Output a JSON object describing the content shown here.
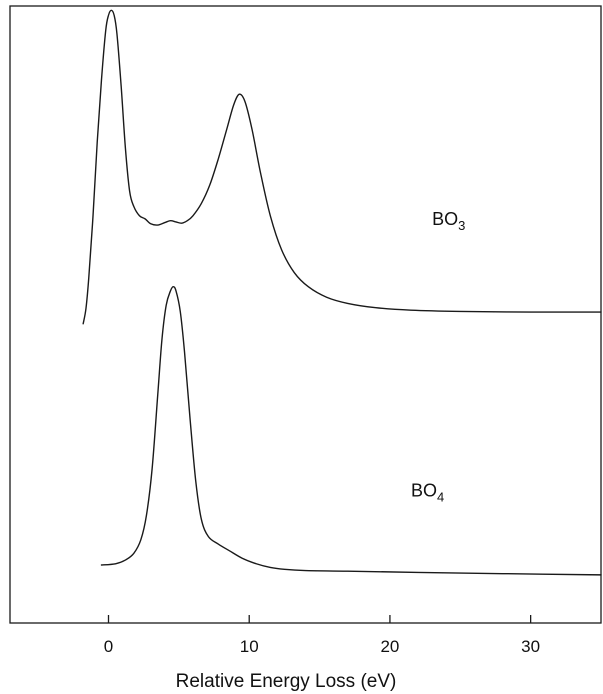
{
  "chart_data": {
    "type": "line",
    "xlabel": "Relative Energy Loss (eV)",
    "ylabel": "",
    "xlim": [
      -7,
      35
    ],
    "ylim": [
      0,
      1
    ],
    "xticks": [
      {
        "value": 0,
        "label": "0"
      },
      {
        "value": 10,
        "label": "10"
      },
      {
        "value": 20,
        "label": "20"
      },
      {
        "value": 30,
        "label": "30"
      }
    ],
    "grid": false,
    "legend": "none",
    "series": [
      {
        "label_main": "BO",
        "label_sub": "3",
        "label_pos": {
          "x": 23.0,
          "y": 0.645
        },
        "color": "#1a1a1a",
        "points": [
          [
            -1.8,
            0.485
          ],
          [
            -1.6,
            0.51
          ],
          [
            -1.4,
            0.56
          ],
          [
            -1.1,
            0.66
          ],
          [
            -0.8,
            0.78
          ],
          [
            -0.5,
            0.88
          ],
          [
            -0.2,
            0.96
          ],
          [
            0.0,
            0.985
          ],
          [
            0.2,
            0.993
          ],
          [
            0.4,
            0.985
          ],
          [
            0.6,
            0.955
          ],
          [
            0.9,
            0.87
          ],
          [
            1.2,
            0.77
          ],
          [
            1.5,
            0.7
          ],
          [
            1.8,
            0.675
          ],
          [
            2.2,
            0.66
          ],
          [
            2.6,
            0.655
          ],
          [
            3.0,
            0.647
          ],
          [
            3.5,
            0.645
          ],
          [
            4.0,
            0.649
          ],
          [
            4.4,
            0.652
          ],
          [
            4.8,
            0.65
          ],
          [
            5.2,
            0.648
          ],
          [
            5.6,
            0.652
          ],
          [
            6.0,
            0.66
          ],
          [
            6.6,
            0.68
          ],
          [
            7.2,
            0.71
          ],
          [
            7.8,
            0.752
          ],
          [
            8.4,
            0.8
          ],
          [
            8.9,
            0.84
          ],
          [
            9.3,
            0.857
          ],
          [
            9.7,
            0.845
          ],
          [
            10.2,
            0.8
          ],
          [
            10.8,
            0.73
          ],
          [
            11.5,
            0.66
          ],
          [
            12.3,
            0.605
          ],
          [
            13.2,
            0.568
          ],
          [
            14.2,
            0.545
          ],
          [
            15.5,
            0.528
          ],
          [
            17.0,
            0.518
          ],
          [
            19.0,
            0.511
          ],
          [
            21.5,
            0.507
          ],
          [
            25.0,
            0.505
          ],
          [
            30.0,
            0.504
          ],
          [
            35.0,
            0.504
          ]
        ]
      },
      {
        "label_main": "BO",
        "label_sub": "4",
        "label_pos": {
          "x": 21.5,
          "y": 0.205
        },
        "color": "#1a1a1a",
        "points": [
          [
            -0.5,
            0.094
          ],
          [
            0.5,
            0.096
          ],
          [
            1.2,
            0.102
          ],
          [
            1.8,
            0.113
          ],
          [
            2.3,
            0.135
          ],
          [
            2.7,
            0.175
          ],
          [
            3.1,
            0.25
          ],
          [
            3.5,
            0.37
          ],
          [
            3.8,
            0.46
          ],
          [
            4.1,
            0.515
          ],
          [
            4.4,
            0.538
          ],
          [
            4.6,
            0.545
          ],
          [
            4.8,
            0.538
          ],
          [
            5.1,
            0.505
          ],
          [
            5.4,
            0.44
          ],
          [
            5.8,
            0.33
          ],
          [
            6.2,
            0.23
          ],
          [
            6.6,
            0.168
          ],
          [
            7.1,
            0.14
          ],
          [
            7.8,
            0.128
          ],
          [
            8.6,
            0.117
          ],
          [
            9.5,
            0.105
          ],
          [
            10.5,
            0.096
          ],
          [
            11.5,
            0.09
          ],
          [
            12.5,
            0.087
          ],
          [
            14.0,
            0.085
          ],
          [
            17.0,
            0.084
          ],
          [
            22.0,
            0.082
          ],
          [
            28.0,
            0.08
          ],
          [
            35.0,
            0.078
          ]
        ]
      }
    ]
  }
}
